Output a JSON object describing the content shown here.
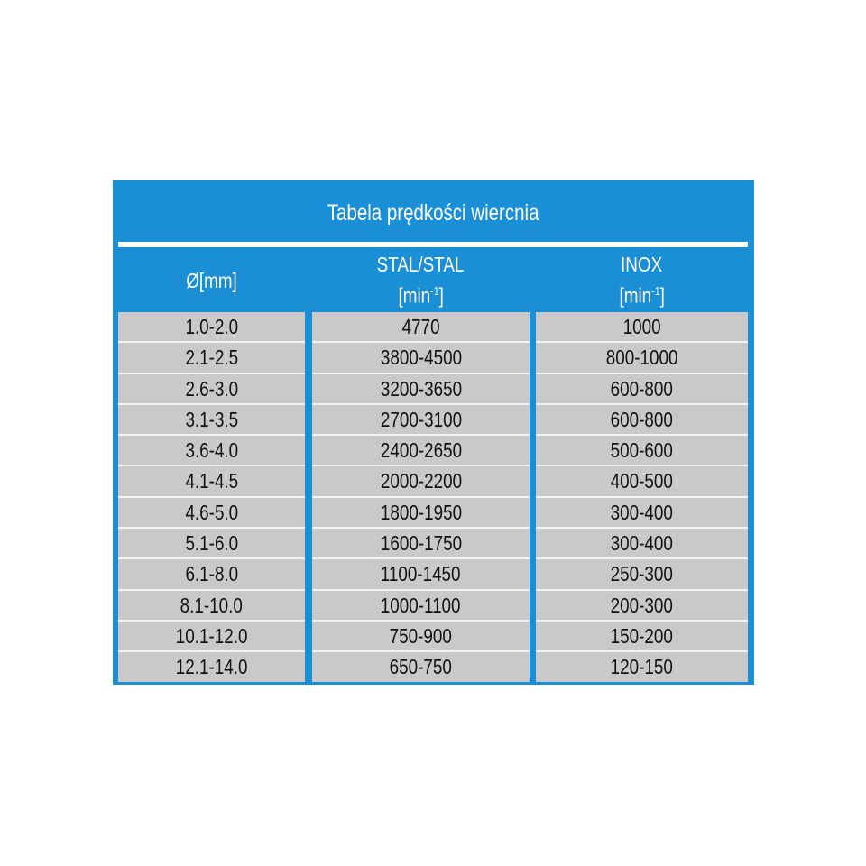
{
  "title": "Tabela prędkości wiercnia",
  "headers": [
    {
      "label": "Ø[mm]",
      "unit": ""
    },
    {
      "label": "STAL/STAL",
      "unit": "[min",
      "unit_sup": "-1",
      "unit_end": "]"
    },
    {
      "label": "INOX",
      "unit": "[min",
      "unit_sup": "-1",
      "unit_end": "]"
    }
  ],
  "columns": {
    "diameter": [
      "1.0-2.0",
      "2.1-2.5",
      "2.6-3.0",
      "3.1-3.5",
      "3.6-4.0",
      "4.1-4.5",
      "4.6-5.0",
      "5.1-6.0",
      "6.1-8.0",
      "8.1-10.0",
      "10.1-12.0",
      "12.1-14.0"
    ],
    "steel": [
      "4770",
      "3800-4500",
      "3200-3650",
      "2700-3100",
      "2400-2650",
      "2000-2200",
      "1800-1950",
      "1600-1750",
      "1100-1450",
      "1000-1100",
      "750-900",
      "650-750"
    ],
    "inox": [
      "1000",
      "800-1000",
      "600-800",
      "600-800",
      "500-600",
      "400-500",
      "300-400",
      "300-400",
      "250-300",
      "200-300",
      "150-200",
      "120-150"
    ]
  },
  "colors": {
    "header_blue": "#1a8fd6",
    "cell_gray": "#c9c9c9"
  }
}
